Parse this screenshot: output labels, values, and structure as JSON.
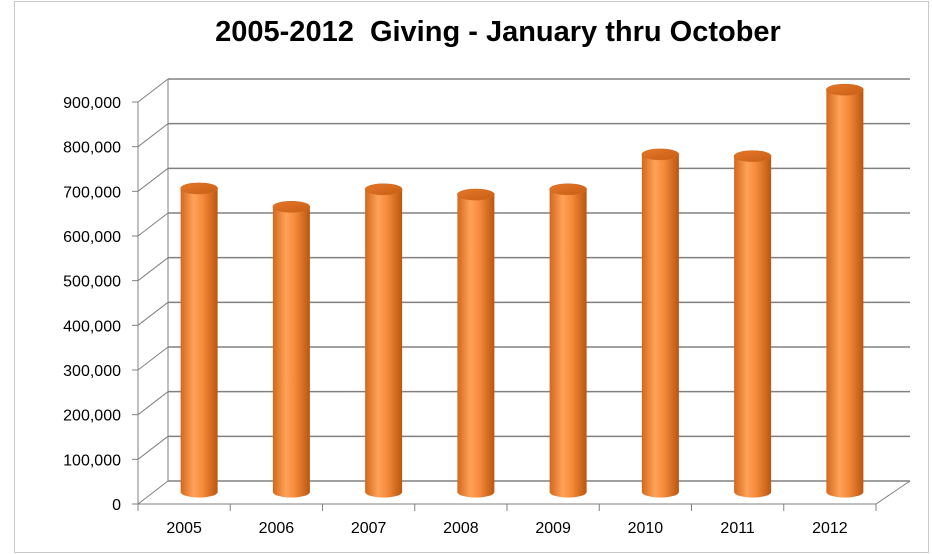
{
  "chart_data": {
    "type": "bar",
    "title": "2005-2012  Giving - January thru October",
    "categories": [
      "2005",
      "2006",
      "2007",
      "2008",
      "2009",
      "2010",
      "2011",
      "2012"
    ],
    "values": [
      672000,
      630000,
      670000,
      658000,
      670000,
      750000,
      746000,
      898000
    ],
    "ylim": [
      0,
      900000
    ],
    "yticks": [
      "0",
      "100,000",
      "200,000",
      "300,000",
      "400,000",
      "500,000",
      "600,000",
      "700,000",
      "800,000",
      "900,000"
    ],
    "xlabel": "",
    "ylabel": "",
    "grid": true,
    "legend": "none",
    "bar_style": "3d-cylinder",
    "bar_color": "#F58A3A",
    "bar_dark_color": "#C35D14",
    "gridline_color": "#808080",
    "frame_color": "#C9C9C9"
  }
}
